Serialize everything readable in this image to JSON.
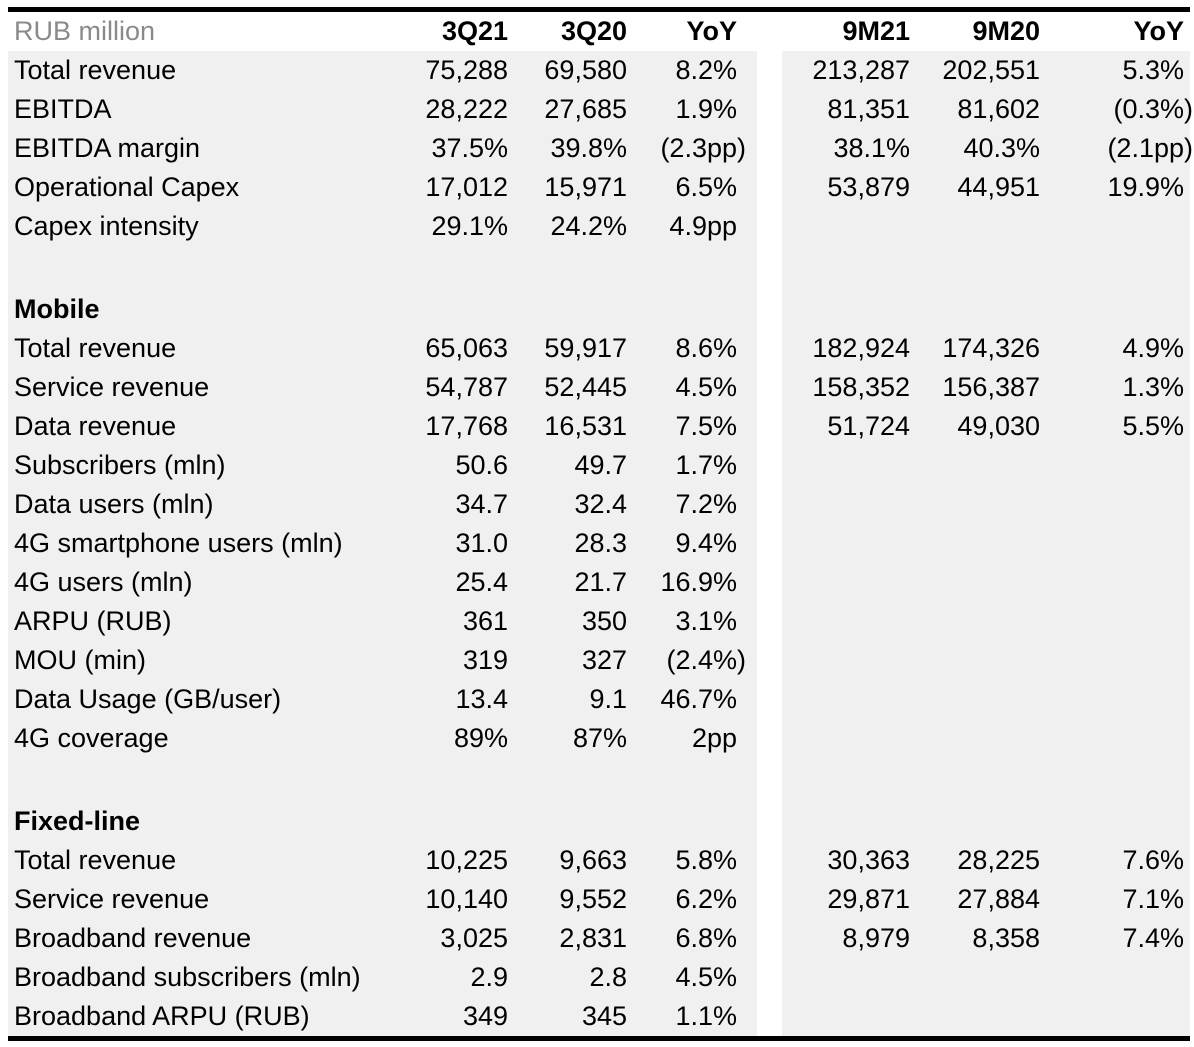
{
  "document": {
    "kind": "financial-results-table",
    "unit_label": "RUB million"
  },
  "colors": {
    "band": "#f0f0f0",
    "rule": "#000000",
    "muted_text": "#8a8a8a",
    "text": "#000000",
    "background": "#ffffff"
  },
  "header": {
    "unit_label": "RUB million",
    "col_3q21": "3Q21",
    "col_3q20": "3Q20",
    "col_yoy_q": "YoY",
    "col_9m21": "9M21",
    "col_9m20": "9M20",
    "col_yoy_9m": "YoY"
  },
  "table": {
    "rows": [
      {
        "type": "data",
        "label": "Total revenue",
        "q1": "75,288",
        "q2": "69,580",
        "yoy": "8.2%",
        "m1": "213,287",
        "m2": "202,551",
        "myoy": "5.3%"
      },
      {
        "type": "data",
        "label": "EBITDA",
        "q1": "28,222",
        "q2": "27,685",
        "yoy": "1.9%",
        "m1": "81,351",
        "m2": "81,602",
        "myoy": "(0.3%)"
      },
      {
        "type": "data",
        "label": "EBITDA margin",
        "q1": "37.5%",
        "q2": "39.8%",
        "yoy": "(2.3pp)",
        "m1": "38.1%",
        "m2": "40.3%",
        "myoy": "(2.1pp)"
      },
      {
        "type": "data",
        "label": "Operational Capex",
        "q1": "17,012",
        "q2": "15,971",
        "yoy": "6.5%",
        "m1": "53,879",
        "m2": "44,951",
        "myoy": "19.9%"
      },
      {
        "type": "data",
        "label": "Capex intensity",
        "q1": "29.1%",
        "q2": "24.2%",
        "yoy": "4.9pp",
        "m1": "",
        "m2": "",
        "myoy": ""
      },
      {
        "type": "blank",
        "label": "",
        "q1": "",
        "q2": "",
        "yoy": "",
        "m1": "",
        "m2": "",
        "myoy": ""
      },
      {
        "type": "section",
        "label": "Mobile",
        "q1": "",
        "q2": "",
        "yoy": "",
        "m1": "",
        "m2": "",
        "myoy": ""
      },
      {
        "type": "data",
        "label": "Total revenue",
        "q1": "65,063",
        "q2": "59,917",
        "yoy": "8.6%",
        "m1": "182,924",
        "m2": "174,326",
        "myoy": "4.9%"
      },
      {
        "type": "data",
        "label": "Service revenue",
        "q1": "54,787",
        "q2": "52,445",
        "yoy": "4.5%",
        "m1": "158,352",
        "m2": "156,387",
        "myoy": "1.3%"
      },
      {
        "type": "data",
        "label": "Data revenue",
        "q1": "17,768",
        "q2": "16,531",
        "yoy": "7.5%",
        "m1": "51,724",
        "m2": "49,030",
        "myoy": "5.5%"
      },
      {
        "type": "data",
        "label": "Subscribers (mln)",
        "q1": "50.6",
        "q2": "49.7",
        "yoy": "1.7%",
        "m1": "",
        "m2": "",
        "myoy": ""
      },
      {
        "type": "data",
        "label": "Data users (mln)",
        "q1": "34.7",
        "q2": "32.4",
        "yoy": "7.2%",
        "m1": "",
        "m2": "",
        "myoy": ""
      },
      {
        "type": "data",
        "label": "4G smartphone users (mln)",
        "q1": "31.0",
        "q2": "28.3",
        "yoy": "9.4%",
        "m1": "",
        "m2": "",
        "myoy": ""
      },
      {
        "type": "data",
        "label": "4G users (mln)",
        "q1": "25.4",
        "q2": "21.7",
        "yoy": "16.9%",
        "m1": "",
        "m2": "",
        "myoy": ""
      },
      {
        "type": "data",
        "label": "ARPU (RUB)",
        "q1": "361",
        "q2": "350",
        "yoy": "3.1%",
        "m1": "",
        "m2": "",
        "myoy": ""
      },
      {
        "type": "data",
        "label": "MOU (min)",
        "q1": "319",
        "q2": "327",
        "yoy": "(2.4%)",
        "m1": "",
        "m2": "",
        "myoy": ""
      },
      {
        "type": "data",
        "label": "Data Usage (GB/user)",
        "q1": "13.4",
        "q2": "9.1",
        "yoy": "46.7%",
        "m1": "",
        "m2": "",
        "myoy": ""
      },
      {
        "type": "data",
        "label": "4G coverage",
        "q1": "89%",
        "q2": "87%",
        "yoy": "2pp",
        "m1": "",
        "m2": "",
        "myoy": ""
      },
      {
        "type": "blank",
        "label": "",
        "q1": "",
        "q2": "",
        "yoy": "",
        "m1": "",
        "m2": "",
        "myoy": ""
      },
      {
        "type": "section",
        "label": "Fixed-line",
        "q1": "",
        "q2": "",
        "yoy": "",
        "m1": "",
        "m2": "",
        "myoy": ""
      },
      {
        "type": "data",
        "label": "Total revenue",
        "q1": "10,225",
        "q2": "9,663",
        "yoy": "5.8%",
        "m1": "30,363",
        "m2": "28,225",
        "myoy": "7.6%"
      },
      {
        "type": "data",
        "label": "Service revenue",
        "q1": "10,140",
        "q2": "9,552",
        "yoy": "6.2%",
        "m1": "29,871",
        "m2": "27,884",
        "myoy": "7.1%"
      },
      {
        "type": "data",
        "label": "Broadband revenue",
        "q1": "3,025",
        "q2": "2,831",
        "yoy": "6.8%",
        "m1": "8,979",
        "m2": "8,358",
        "myoy": "7.4%"
      },
      {
        "type": "data",
        "label": "Broadband subscribers (mln)",
        "q1": "2.9",
        "q2": "2.8",
        "yoy": "4.5%",
        "m1": "",
        "m2": "",
        "myoy": ""
      },
      {
        "type": "data",
        "label": "Broadband ARPU (RUB)",
        "q1": "349",
        "q2": "345",
        "yoy": "1.1%",
        "m1": "",
        "m2": "",
        "myoy": ""
      }
    ]
  }
}
